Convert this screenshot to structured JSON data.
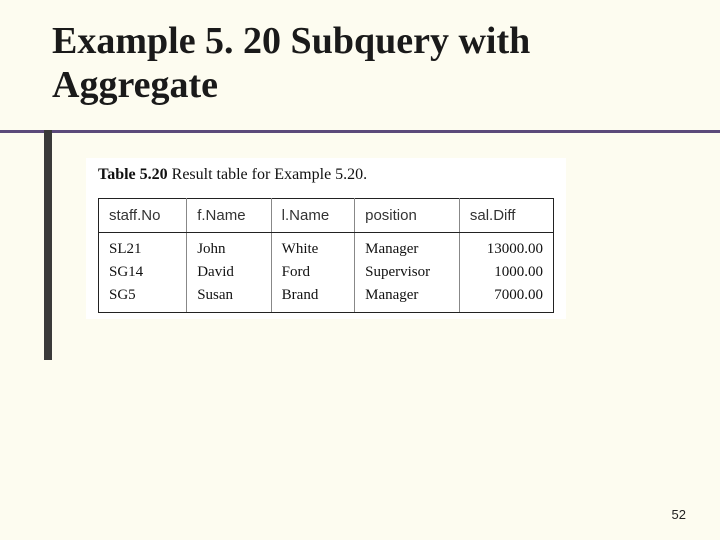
{
  "title_line1": "Example 5. 20  Subquery with",
  "title_line2": "Aggregate",
  "caption_bold": "Table 5.20",
  "caption_rest": "   Result table for Example 5.20.",
  "columns": [
    "staff.No",
    "f.Name",
    "l.Name",
    "position",
    "sal.Diff"
  ],
  "rows": [
    [
      "SL21",
      "John",
      "White",
      "Manager",
      "13000.00"
    ],
    [
      "SG14",
      "David",
      "Ford",
      "Supervisor",
      "1000.00"
    ],
    [
      "SG5",
      "Susan",
      "Brand",
      "Manager",
      "7000.00"
    ]
  ],
  "page_number": "52",
  "colors": {
    "background": "#fdfcf0",
    "underline": "#5b4a7a",
    "accent": "#3a3a3a",
    "table_bg": "#ffffff",
    "border_dark": "#222222",
    "border_light": "#888888"
  }
}
